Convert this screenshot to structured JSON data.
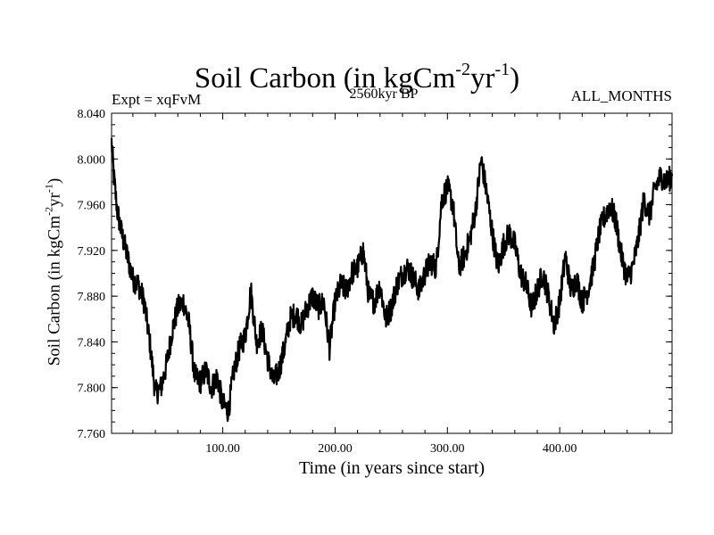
{
  "chart_data": {
    "type": "line",
    "title": "Soil Carbon (in kgCm",
    "title_exp1": "-2",
    "title_mid": "yr",
    "title_exp2": "-1",
    "title_end": ")",
    "subtitle_left": "Expt = xqFvM",
    "subtitle_center": "2560kyr BP",
    "subtitle_right": "ALL_MONTHS",
    "xlabel": "Time (in years since start)",
    "ylabel": "Soil Carbon (in kgCm",
    "ylabel_exp1": "-2",
    "ylabel_mid": "yr",
    "ylabel_exp2": "-1",
    "ylabel_end": ")",
    "xlim": [
      1,
      500
    ],
    "ylim": [
      7.76,
      8.04
    ],
    "x_ticks": [
      100,
      200,
      300,
      400
    ],
    "x_tick_labels": [
      "100.00",
      "200.00",
      "300.00",
      "400.00"
    ],
    "y_ticks": [
      7.76,
      7.8,
      7.84,
      7.88,
      7.92,
      7.96,
      8.0,
      8.04
    ],
    "y_tick_labels": [
      "7.760",
      "7.800",
      "7.840",
      "7.880",
      "7.920",
      "7.960",
      "8.000",
      "8.040"
    ],
    "series": [
      {
        "name": "Soil Carbon",
        "color": "#000000",
        "x": [
          1,
          3,
          6,
          10,
          15,
          20,
          25,
          30,
          35,
          40,
          45,
          50,
          55,
          60,
          65,
          70,
          75,
          80,
          85,
          90,
          95,
          100,
          105,
          110,
          115,
          120,
          125,
          130,
          135,
          140,
          145,
          150,
          155,
          160,
          165,
          170,
          175,
          180,
          185,
          190,
          195,
          200,
          205,
          210,
          215,
          220,
          225,
          230,
          235,
          240,
          245,
          250,
          255,
          260,
          265,
          270,
          275,
          280,
          285,
          290,
          295,
          300,
          305,
          310,
          315,
          320,
          325,
          330,
          335,
          340,
          345,
          350,
          355,
          360,
          365,
          370,
          375,
          380,
          385,
          390,
          395,
          400,
          405,
          410,
          415,
          420,
          425,
          430,
          435,
          440,
          445,
          450,
          455,
          460,
          465,
          470,
          475,
          480,
          485,
          490,
          495,
          500
        ],
        "y": [
          8.015,
          7.985,
          7.955,
          7.935,
          7.915,
          7.895,
          7.89,
          7.875,
          7.84,
          7.795,
          7.8,
          7.82,
          7.85,
          7.87,
          7.875,
          7.855,
          7.81,
          7.805,
          7.815,
          7.8,
          7.81,
          7.785,
          7.78,
          7.815,
          7.835,
          7.845,
          7.885,
          7.84,
          7.85,
          7.825,
          7.805,
          7.815,
          7.835,
          7.86,
          7.865,
          7.855,
          7.87,
          7.88,
          7.87,
          7.875,
          7.835,
          7.875,
          7.89,
          7.885,
          7.9,
          7.905,
          7.92,
          7.88,
          7.875,
          7.89,
          7.86,
          7.87,
          7.89,
          7.9,
          7.905,
          7.895,
          7.885,
          7.9,
          7.91,
          7.905,
          7.965,
          7.975,
          7.96,
          7.905,
          7.915,
          7.93,
          7.955,
          8.0,
          7.97,
          7.935,
          7.905,
          7.925,
          7.935,
          7.925,
          7.9,
          7.89,
          7.87,
          7.885,
          7.9,
          7.88,
          7.855,
          7.875,
          7.915,
          7.885,
          7.895,
          7.875,
          7.885,
          7.905,
          7.935,
          7.95,
          7.96,
          7.945,
          7.915,
          7.895,
          7.905,
          7.93,
          7.965,
          7.95,
          7.975,
          7.985,
          7.98,
          7.985
        ],
        "line_width": 2.2
      }
    ]
  }
}
